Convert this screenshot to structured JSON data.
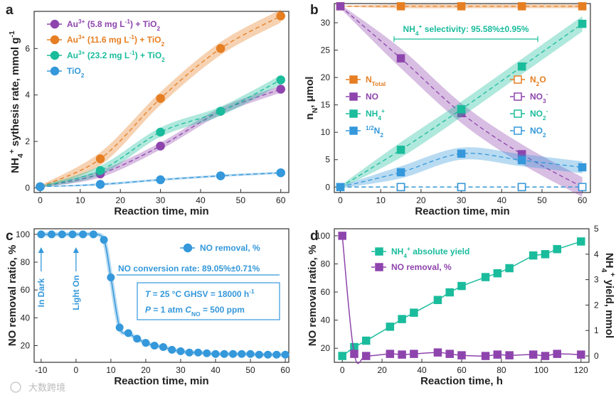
{
  "watermark": "大数跨境",
  "chart_data": [
    {
      "id": "a",
      "type": "line",
      "panel_label": "a",
      "xlabel": "Reaction time, min",
      "ylabel": "NH4+ sythesis rate, mmol g-1",
      "ylabel_parts": [
        "NH",
        "4",
        "+",
        " sythesis rate, mmol g",
        "-1"
      ],
      "xlim": [
        0,
        60
      ],
      "ylim": [
        0,
        7.5
      ],
      "xticks": [
        0,
        10,
        20,
        30,
        40,
        50,
        60
      ],
      "yticks": [
        0,
        2,
        4,
        6
      ],
      "series": [
        {
          "name": "Au3+ (5.8 mg L-1) + TiO2",
          "legend_parts": [
            "Au",
            "3+",
            " (5.8 mg L",
            "-1",
            ") + TiO",
            "2"
          ],
          "color": "#8e44ad",
          "x": [
            0,
            15,
            30,
            45,
            60
          ],
          "values": [
            0.05,
            0.6,
            1.8,
            3.3,
            4.25
          ],
          "band": 0.15
        },
        {
          "name": "Au3+ (11.6 mg L-1) + TiO2",
          "legend_parts": [
            "Au",
            "3+",
            " (11.6 mg L",
            "-1",
            ") + TiO",
            "2"
          ],
          "color": "#e67e22",
          "x": [
            0,
            15,
            30,
            45,
            60
          ],
          "values": [
            0.05,
            1.25,
            3.85,
            6.0,
            7.4
          ],
          "band": 0.28
        },
        {
          "name": "Au3+ (23.2 mg L-1) + TiO2",
          "legend_parts": [
            "Au",
            "3+",
            " (23.2 mg L",
            "-1",
            ") + TiO",
            "2"
          ],
          "color": "#1abc9c",
          "x": [
            0,
            15,
            30,
            45,
            60
          ],
          "values": [
            0.05,
            0.75,
            2.4,
            3.3,
            4.65
          ],
          "band": 0.2
        },
        {
          "name": "TiO2",
          "legend_parts": [
            "TiO",
            "2"
          ],
          "color": "#3498db",
          "x": [
            0,
            15,
            30,
            45,
            60
          ],
          "values": [
            0.05,
            0.15,
            0.35,
            0.52,
            0.65
          ],
          "band": 0.05
        }
      ]
    },
    {
      "id": "b",
      "type": "line",
      "panel_label": "b",
      "xlabel": "Reaction time, min",
      "ylabel": "nN, μmol",
      "ylabel_parts": [
        "n",
        "N",
        ", μmol"
      ],
      "xlim": [
        0,
        60
      ],
      "ylim": [
        -1,
        33.5
      ],
      "xticks": [
        0,
        10,
        20,
        30,
        40,
        50,
        60
      ],
      "yticks": [
        0,
        5,
        10,
        15,
        20,
        25,
        30
      ],
      "annotation": "NH4+ selectivity: 95.58%±0.95%",
      "annotation_parts": [
        "NH",
        "4",
        "+",
        " selectivity: 95.58%±0.95%"
      ],
      "series": [
        {
          "name": "NTotal",
          "legend_parts": [
            "N",
            "Total"
          ],
          "color": "#e67e22",
          "marker": "filled",
          "x": [
            0,
            15,
            30,
            45,
            60
          ],
          "values": [
            33.0,
            33.0,
            33.0,
            33.0,
            33.0
          ],
          "band": 0.35
        },
        {
          "name": "NO",
          "legend_parts": [
            "NO"
          ],
          "color": "#8e44ad",
          "marker": "filled",
          "x": [
            0,
            15,
            30,
            45,
            60
          ],
          "values": [
            33.0,
            23.5,
            13.5,
            6.0,
            0.0
          ],
          "band": 1.8
        },
        {
          "name": "NH4+",
          "legend_parts": [
            "NH",
            "4",
            "+"
          ],
          "color": "#1abc9c",
          "marker": "filled",
          "x": [
            0,
            15,
            30,
            45,
            60
          ],
          "values": [
            0.0,
            6.8,
            14.2,
            22.0,
            29.8
          ],
          "band": 1.4
        },
        {
          "name": "1/2N2",
          "legend_parts": [
            "1/2",
            "N",
            "2"
          ],
          "color": "#3498db",
          "marker": "filled",
          "x": [
            0,
            15,
            30,
            45,
            60
          ],
          "values": [
            0.0,
            2.7,
            6.1,
            4.9,
            3.6
          ],
          "band": 1.1
        },
        {
          "name": "N2O",
          "legend_parts": [
            "N",
            "2",
            "O"
          ],
          "color": "#e67e22",
          "marker": "open",
          "x": [
            0,
            15,
            30,
            45,
            60
          ],
          "values": [
            0,
            0,
            0,
            0,
            0
          ],
          "band": 0
        },
        {
          "name": "NO3-",
          "legend_parts": [
            "NO",
            "3",
            "-"
          ],
          "color": "#8e44ad",
          "marker": "open",
          "x": [
            0,
            15,
            30,
            45,
            60
          ],
          "values": [
            0,
            0,
            0,
            0,
            0
          ],
          "band": 0
        },
        {
          "name": "NO2-",
          "legend_parts": [
            "NO",
            "2",
            "-"
          ],
          "color": "#1abc9c",
          "marker": "open",
          "x": [
            0,
            15,
            30,
            45,
            60
          ],
          "values": [
            0,
            0,
            0,
            0,
            0
          ],
          "band": 0
        },
        {
          "name": "NO2",
          "legend_parts": [
            "NO",
            "2",
            ""
          ],
          "color": "#3498db",
          "marker": "open",
          "x": [
            0,
            15,
            30,
            45,
            60
          ],
          "values": [
            0,
            0,
            0,
            0,
            0
          ],
          "band": 0
        }
      ]
    },
    {
      "id": "c",
      "type": "line",
      "panel_label": "c",
      "xlabel": "Reaction time, min",
      "ylabel": "NO removal ratio, %",
      "xlim": [
        -12,
        61
      ],
      "ylim": [
        8,
        104
      ],
      "xticks": [
        -10,
        0,
        10,
        20,
        30,
        40,
        50,
        60
      ],
      "yticks": [
        20,
        40,
        60,
        80,
        100
      ],
      "annotation": "NO conversion rate: 89.05%±0.71%",
      "conditions_line1": [
        "T",
        " = 25 °C   GHSV = 18000 h",
        "-1"
      ],
      "conditions_line2": [
        "P",
        " = 1 atm   ",
        "C",
        "NO",
        " = 500 ppm"
      ],
      "event_labels": [
        "In Dark",
        "Light On"
      ],
      "series": [
        {
          "name": "NO removal, %",
          "color": "#3498db",
          "x": [
            -10,
            -7,
            -4,
            -1,
            2,
            5,
            8,
            10,
            12.5,
            15,
            17.5,
            20,
            22.5,
            25,
            27.5,
            30,
            32.5,
            35,
            37.5,
            40,
            42.5,
            45,
            47.5,
            50,
            52.5,
            55,
            57.5,
            60
          ],
          "values": [
            100,
            100,
            100,
            100,
            100,
            100,
            96,
            69,
            33,
            29,
            25,
            22,
            20,
            19,
            17,
            16,
            15,
            15,
            14.5,
            14,
            14,
            14,
            14,
            14,
            13.5,
            13.5,
            13.5,
            13.5
          ]
        }
      ]
    },
    {
      "id": "d",
      "type": "line",
      "panel_label": "d",
      "xlabel": "Reaction time, h",
      "ylabel": "NO removal ratio, %",
      "ylabel_right": "NH4+ yield, mmol",
      "ylabel_right_parts": [
        "NH",
        "4",
        "+",
        " yield, mmol"
      ],
      "xlim": [
        -4,
        124
      ],
      "ylim": [
        10,
        105
      ],
      "ylim_right": [
        -0.25,
        5
      ],
      "xticks": [
        0,
        20,
        40,
        60,
        80,
        100,
        120
      ],
      "yticks": [
        20,
        40,
        60,
        80,
        100
      ],
      "yticks_right": [
        0,
        1,
        2,
        3,
        4,
        5
      ],
      "series": [
        {
          "name": "NH4+ absolute yield",
          "legend_parts": [
            "NH",
            "4",
            "+",
            " absolute yield"
          ],
          "color": "#1abc9c",
          "axis": "right",
          "x": [
            0,
            6,
            12,
            24,
            30,
            36,
            48,
            54,
            60,
            72,
            78,
            84,
            96,
            102,
            108,
            120
          ],
          "values": [
            0.0,
            0.35,
            0.6,
            1.15,
            1.45,
            1.7,
            2.2,
            2.5,
            2.75,
            3.1,
            3.25,
            3.45,
            3.95,
            4.0,
            4.2,
            4.5
          ]
        },
        {
          "name": "NO removal, %",
          "legend_parts": [
            "NO removal, %"
          ],
          "color": "#8e44ad",
          "axis": "left",
          "x": [
            0,
            6,
            12,
            24,
            30,
            36,
            48,
            54,
            60,
            72,
            78,
            84,
            96,
            102,
            108,
            120
          ],
          "values": [
            100,
            16,
            14.5,
            16,
            15.5,
            16,
            17,
            16,
            15,
            14.5,
            15.5,
            15,
            15.5,
            14.5,
            16,
            15.5
          ]
        }
      ]
    }
  ]
}
